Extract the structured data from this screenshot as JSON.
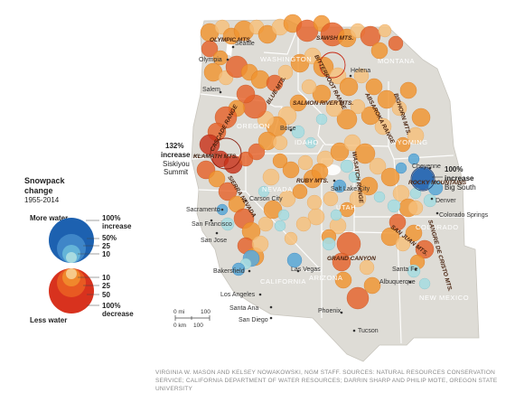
{
  "legend": {
    "title": "Snowpack",
    "subtitle1": "change",
    "subtitle2": "1955-2014",
    "more_water": "More water",
    "less_water": "Less water",
    "increase_labels": [
      "100%",
      "increase",
      "50%",
      "25",
      "10"
    ],
    "decrease_labels": [
      "10",
      "25",
      "50",
      "100%",
      "decrease"
    ]
  },
  "states": [
    "WASHINGTON",
    "MONTANA",
    "OREGON",
    "IDAHO",
    "WYOMING",
    "NEVADA",
    "UTAH",
    "COLORADO",
    "CALIFORNIA",
    "ARIZONA",
    "NEW MEXICO"
  ],
  "cities": [
    "Seattle",
    "Olympia",
    "Salem",
    "Boise",
    "Helena",
    "Cheyenne",
    "Denver",
    "Colorado Springs",
    "Salt Lake City",
    "Carson City",
    "Sacramento",
    "San Francisco",
    "San Jose",
    "Bakersfield",
    "Los Angeles",
    "Santa Ana",
    "San Diego",
    "Las Vegas",
    "Phoenix",
    "Tucson",
    "Santa Fe",
    "Albuquerque"
  ],
  "ranges": [
    "OLYMPIC MTS.",
    "SAWTOOTH? ",
    "CASCADE RANGE",
    "KLAMATH MTS.",
    "BLUE MTS.",
    "SALMON RIVER MTS.",
    "BITTERROOT RANGE",
    "ABSAROKA RANGE",
    "BIGHORN MTS.",
    "SIERRA NEVADA",
    "RUBY MTS.",
    "WASATCH RANGE",
    "ROCKY MOUNTAINS",
    "SAN JUAN MTS.",
    "SANGRE DE CRISTO MTS.",
    "GRAND CANYON",
    "SAWSH MTS."
  ],
  "callouts": {
    "left_value": "132%",
    "left_word": "increase",
    "left_place1": "Siskiyou",
    "left_place2": "Summit",
    "right_value": "100%",
    "right_word": "increase",
    "right_place": "Big South"
  },
  "scale": {
    "mi_label": "0 mi",
    "mi_value": "100",
    "km_label": "0 km",
    "km_value": "100"
  },
  "credit": "VIRGINIA W. MASON AND KELSEY NOWAKOWSKI, NGM STAFF. SOURCES: NATURAL RESOURCES CONSERVATION SERVICE; CALIFORNIA DEPARTMENT OF WATER RESOURCES; DARRIN SHARP AND PHILIP MOTE, OREGON STATE UNIVERSITY",
  "colors": {
    "land": "#dedcd6",
    "increase_light": "#a8dbe0",
    "increase_mid": "#64b4d8",
    "increase_dark": "#1d61b0",
    "decrease_light": "#f6c98a",
    "decrease_mid": "#f0882c",
    "decrease_dark": "#d8321e"
  }
}
